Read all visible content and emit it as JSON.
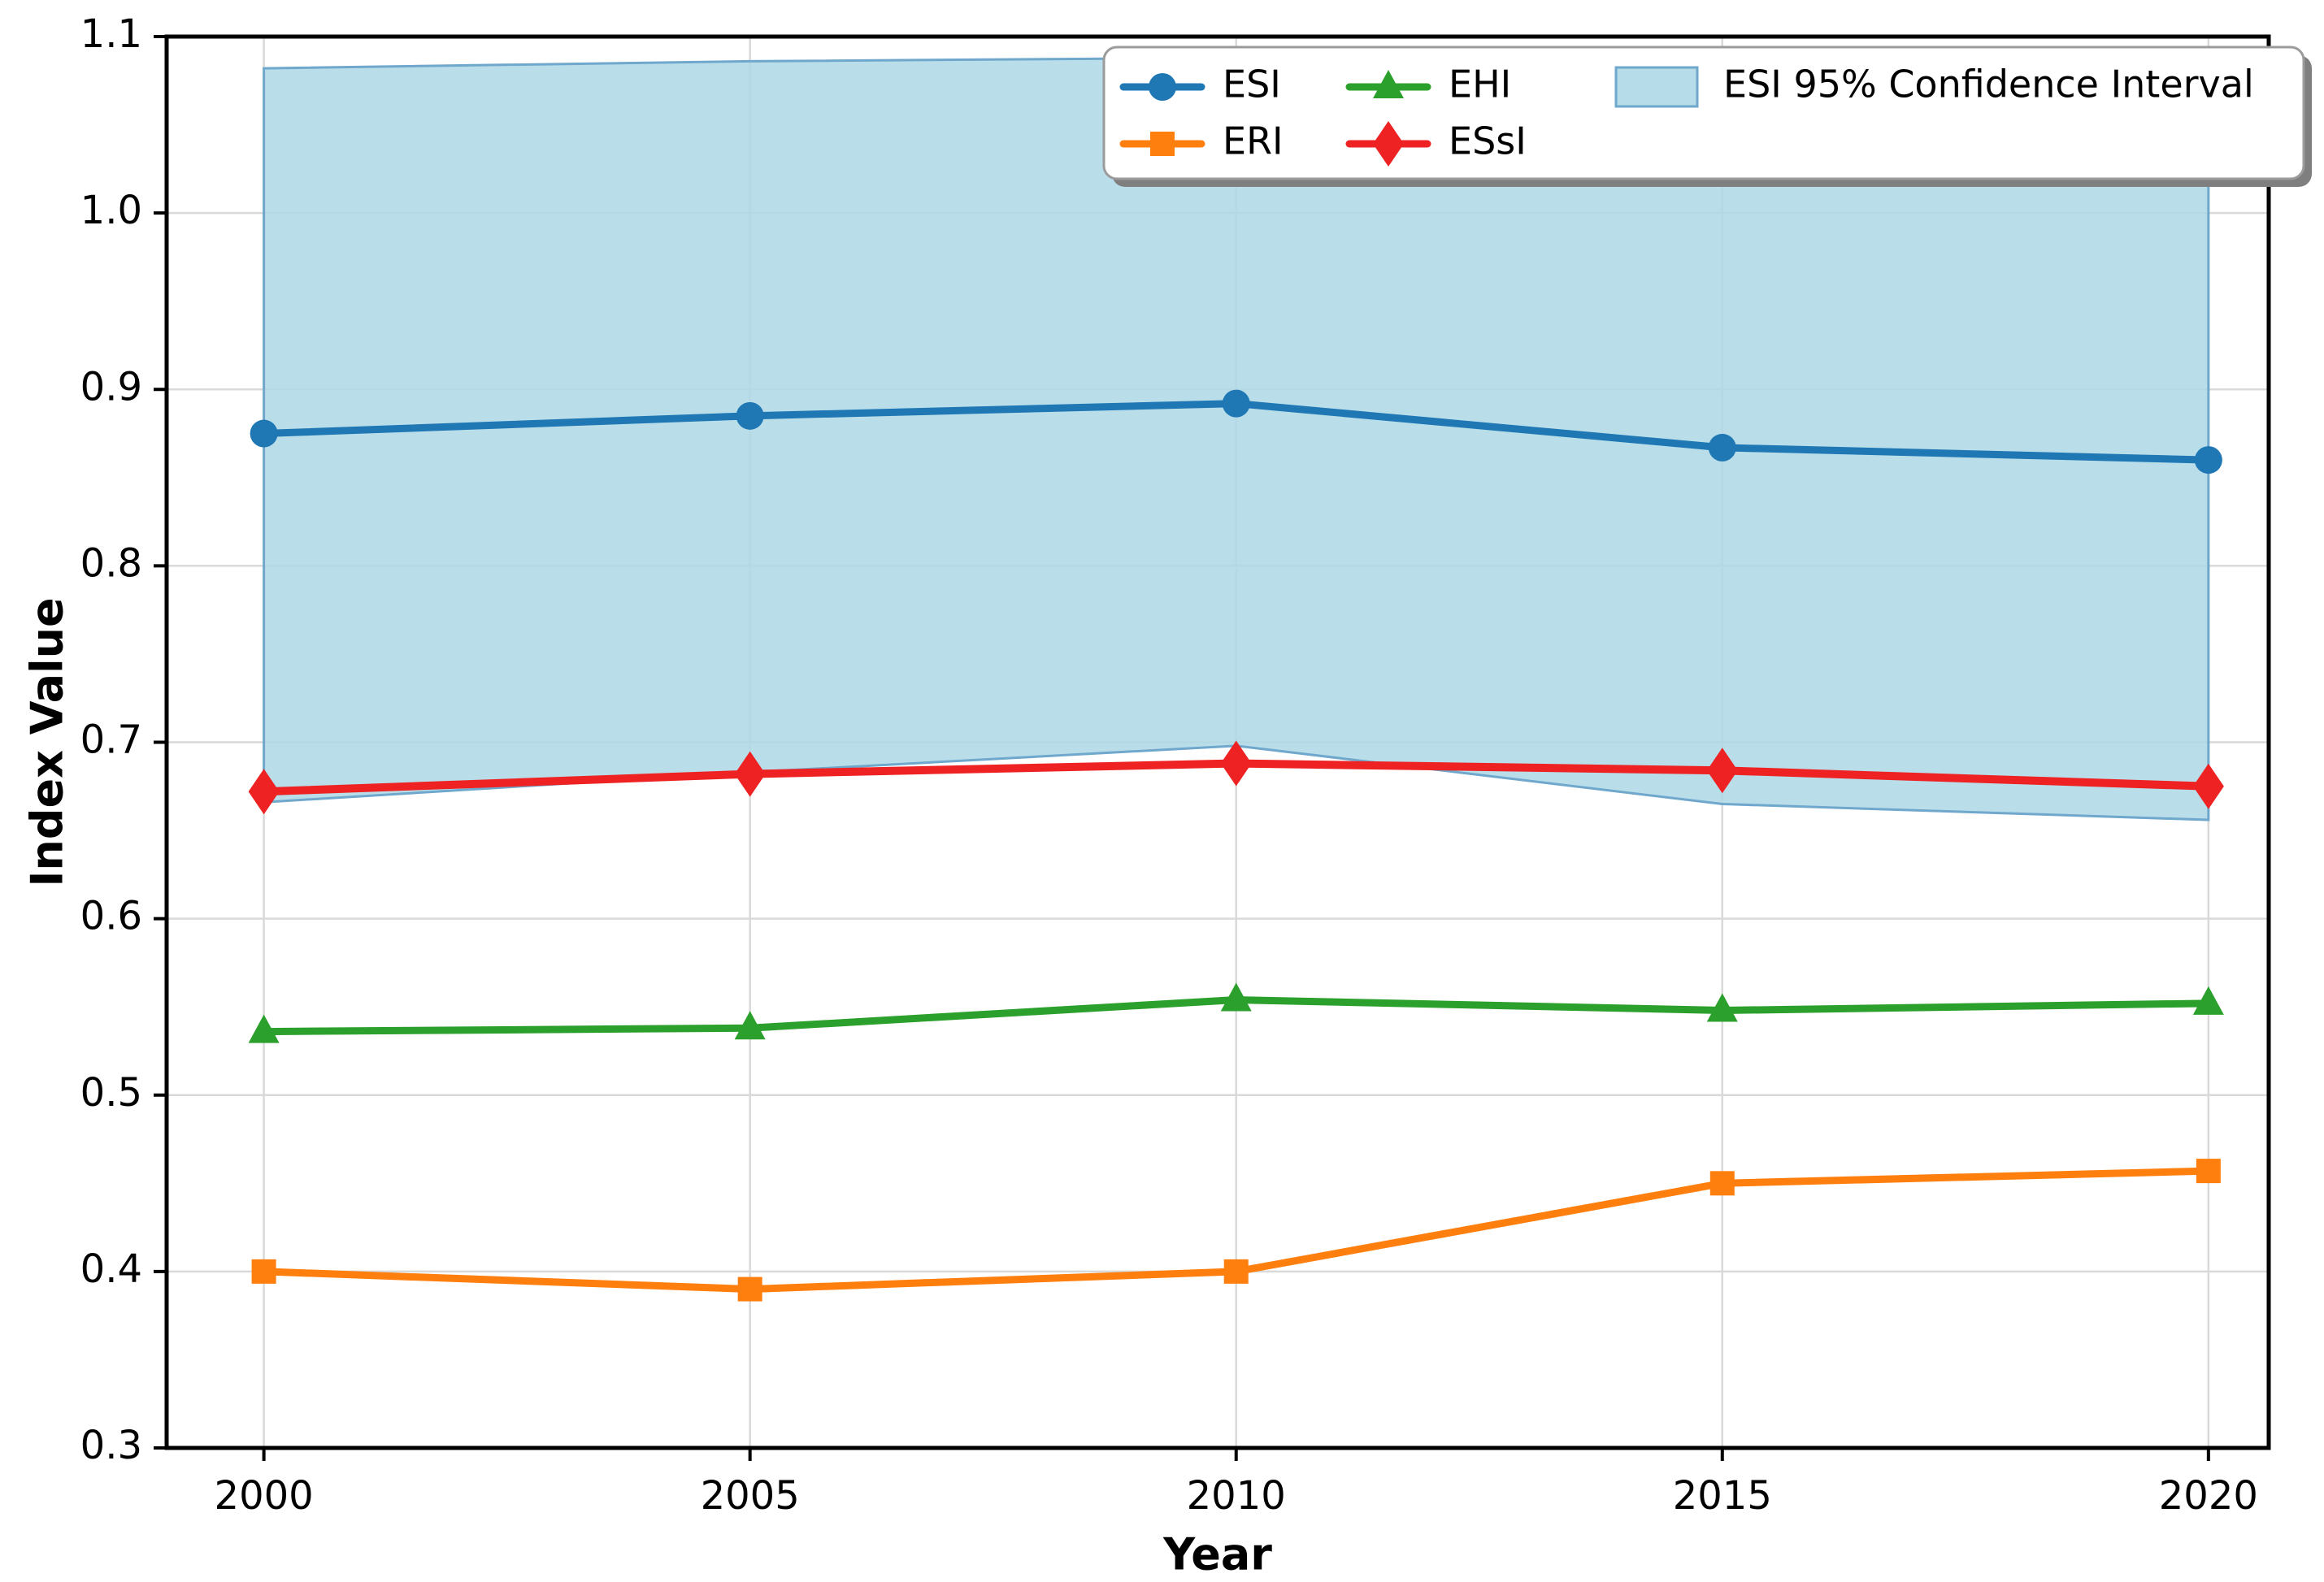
{
  "chart_data": {
    "type": "line",
    "title": "",
    "xlabel": "Year",
    "ylabel": "Index Value",
    "x": [
      2000,
      2005,
      2010,
      2015,
      2020
    ],
    "x_tick_labels": [
      "2000",
      "2005",
      "2010",
      "2015",
      "2020"
    ],
    "y_ticks": [
      0.3,
      0.4,
      0.5,
      0.6,
      0.7,
      0.8,
      0.9,
      1.0,
      1.1
    ],
    "y_tick_labels": [
      "0.3",
      "0.4",
      "0.5",
      "0.6",
      "0.7",
      "0.8",
      "0.9",
      "1.0",
      "1.1"
    ],
    "xlim": [
      1999.0,
      2020.62
    ],
    "ylim": [
      0.3,
      1.1
    ],
    "grid": true,
    "grid_color": "#d9d9d9",
    "series": [
      {
        "name": "ESI",
        "marker": "circle",
        "color": "#1f77b4",
        "values": [
          0.875,
          0.885,
          0.892,
          0.867,
          0.86
        ]
      },
      {
        "name": "ERI",
        "marker": "square",
        "color": "#ff7f0e",
        "values": [
          0.4,
          0.39,
          0.4,
          0.45,
          0.457
        ]
      },
      {
        "name": "EHI",
        "marker": "triangle",
        "color": "#2ca02c",
        "values": [
          0.536,
          0.538,
          0.554,
          0.548,
          0.552
        ]
      },
      {
        "name": "ESsI",
        "marker": "diamond",
        "color": "#ee2222",
        "values": [
          0.672,
          0.682,
          0.688,
          0.684,
          0.675
        ]
      }
    ],
    "band": {
      "name": "ESI 95% Confidence Interval",
      "fill": "#add8e6",
      "fill_opacity": 0.85,
      "edge_color": "#6fa8cc",
      "upper": [
        1.082,
        1.086,
        1.088,
        1.072,
        1.055
      ],
      "lower": [
        0.666,
        0.683,
        0.698,
        0.665,
        0.656
      ]
    },
    "legend": {
      "position": "top-right",
      "columns": [
        [
          "ESI",
          "ERI"
        ],
        [
          "EHI",
          "ESsI"
        ],
        [
          "ESI 95% Confidence Interval"
        ]
      ],
      "entries": [
        "ESI",
        "ERI",
        "EHI",
        "ESsI",
        "ESI 95% Confidence Interval"
      ]
    }
  },
  "style": {
    "axis_color": "#000000",
    "tick_label_color": "#000000",
    "legend_border_color": "#9b9b9b",
    "legend_shadow_color": "#7f7f7f",
    "background": "#ffffff"
  }
}
